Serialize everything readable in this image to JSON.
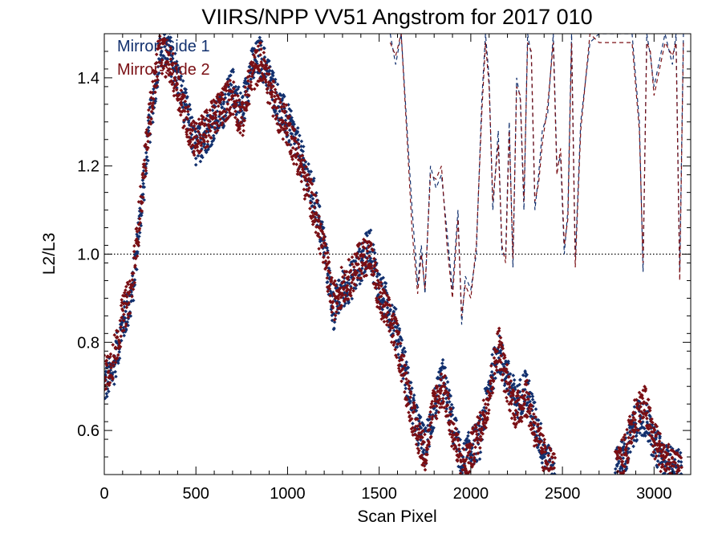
{
  "chart_data": {
    "type": "scatter",
    "title": "VIIRS/NPP VV51 Angstrom for 2017 010",
    "xlabel": "Scan Pixel",
    "ylabel": "L2/L3",
    "xlim": [
      0,
      3200
    ],
    "ylim": [
      0.5,
      1.5
    ],
    "xticks": [
      0,
      500,
      1000,
      1500,
      2000,
      2500,
      3000
    ],
    "xtick_labels": [
      "0",
      "500",
      "1000",
      "1500",
      "2000",
      "2500",
      "3000"
    ],
    "yticks": [
      0.6,
      0.8,
      1.0,
      1.2,
      1.4
    ],
    "ytick_labels": [
      "0.6",
      "0.8",
      "1.0",
      "1.2",
      "1.4"
    ],
    "reference_line": {
      "y": 1.0,
      "style": "dotted"
    },
    "legend_position": "top-left",
    "colors": {
      "mirror_side_1": "#12306e",
      "mirror_side_2": "#7a0f14"
    },
    "series": [
      {
        "name": "Mirror-Side 1",
        "color": "#12306e",
        "points_trace": [
          [
            0,
            0.7
          ],
          [
            50,
            0.74
          ],
          [
            100,
            0.84
          ],
          [
            150,
            0.9
          ],
          [
            200,
            1.1
          ],
          [
            250,
            1.3
          ],
          [
            300,
            1.45
          ],
          [
            350,
            1.47
          ],
          [
            400,
            1.4
          ],
          [
            450,
            1.32
          ],
          [
            500,
            1.24
          ],
          [
            550,
            1.27
          ],
          [
            600,
            1.3
          ],
          [
            650,
            1.33
          ],
          [
            700,
            1.38
          ],
          [
            750,
            1.32
          ],
          [
            800,
            1.42
          ],
          [
            850,
            1.45
          ],
          [
            900,
            1.4
          ],
          [
            950,
            1.34
          ],
          [
            1000,
            1.3
          ],
          [
            1050,
            1.25
          ],
          [
            1100,
            1.18
          ],
          [
            1150,
            1.12
          ],
          [
            1200,
            1.02
          ],
          [
            1250,
            0.87
          ],
          [
            1300,
            0.92
          ],
          [
            1350,
            0.94
          ],
          [
            1400,
            0.98
          ],
          [
            1450,
            1.02
          ],
          [
            1500,
            0.92
          ],
          [
            1550,
            0.88
          ],
          [
            1600,
            0.82
          ],
          [
            1650,
            0.72
          ],
          [
            1700,
            0.62
          ],
          [
            1750,
            0.56
          ],
          [
            1800,
            0.65
          ],
          [
            1850,
            0.72
          ],
          [
            1900,
            0.62
          ],
          [
            1950,
            0.52
          ],
          [
            2000,
            0.56
          ],
          [
            2050,
            0.58
          ],
          [
            2100,
            0.7
          ],
          [
            2150,
            0.78
          ],
          [
            2200,
            0.72
          ],
          [
            2250,
            0.66
          ],
          [
            2300,
            0.7
          ],
          [
            2350,
            0.62
          ],
          [
            2400,
            0.55
          ],
          [
            2450,
            0.5
          ],
          [
            2800,
            0.52
          ],
          [
            2850,
            0.55
          ],
          [
            2900,
            0.62
          ],
          [
            2950,
            0.63
          ],
          [
            3000,
            0.57
          ],
          [
            3050,
            0.53
          ],
          [
            3100,
            0.52
          ],
          [
            3150,
            0.51
          ]
        ],
        "dashed_trace": [
          [
            1560,
            1.5
          ],
          [
            1590,
            1.43
          ],
          [
            1620,
            1.5
          ],
          [
            1650,
            1.3
          ],
          [
            1680,
            1.1
          ],
          [
            1710,
            0.93
          ],
          [
            1730,
            1.02
          ],
          [
            1750,
            0.91
          ],
          [
            1780,
            1.2
          ],
          [
            1810,
            1.15
          ],
          [
            1840,
            1.18
          ],
          [
            1870,
            1.05
          ],
          [
            1900,
            0.92
          ],
          [
            1930,
            1.1
          ],
          [
            1950,
            0.84
          ],
          [
            1970,
            0.95
          ],
          [
            2000,
            0.92
          ],
          [
            2030,
            1.0
          ],
          [
            2060,
            1.35
          ],
          [
            2080,
            1.5
          ],
          [
            2100,
            1.4
          ],
          [
            2120,
            1.1
          ],
          [
            2150,
            1.28
          ],
          [
            2170,
            1.0
          ],
          [
            2190,
            1.0
          ],
          [
            2210,
            1.3
          ],
          [
            2230,
            0.97
          ],
          [
            2250,
            1.4
          ],
          [
            2270,
            1.35
          ],
          [
            2290,
            1.1
          ],
          [
            2310,
            1.5
          ],
          [
            2330,
            1.45
          ],
          [
            2350,
            1.1
          ],
          [
            2370,
            1.18
          ],
          [
            2390,
            1.28
          ],
          [
            2420,
            1.32
          ],
          [
            2450,
            1.5
          ],
          [
            2470,
            1.2
          ],
          [
            2490,
            1.22
          ],
          [
            2510,
            1.0
          ],
          [
            2530,
            1.1
          ],
          [
            2550,
            1.5
          ],
          [
            2570,
            0.99
          ],
          [
            2600,
            1.3
          ],
          [
            2650,
            1.48
          ],
          [
            2700,
            1.5
          ],
          [
            2880,
            1.5
          ],
          [
            2920,
            1.3
          ],
          [
            2940,
            0.96
          ],
          [
            2960,
            1.5
          ],
          [
            2980,
            1.45
          ],
          [
            3000,
            1.38
          ],
          [
            3060,
            1.5
          ],
          [
            3100,
            1.43
          ],
          [
            3120,
            1.5
          ],
          [
            3140,
            0.96
          ],
          [
            3160,
            1.5
          ]
        ]
      },
      {
        "name": "Mirror-Side 2",
        "color": "#7a0f14",
        "points_trace": [
          [
            0,
            0.73
          ],
          [
            50,
            0.76
          ],
          [
            100,
            0.86
          ],
          [
            150,
            0.92
          ],
          [
            200,
            1.12
          ],
          [
            250,
            1.32
          ],
          [
            300,
            1.46
          ],
          [
            350,
            1.44
          ],
          [
            400,
            1.38
          ],
          [
            450,
            1.3
          ],
          [
            500,
            1.26
          ],
          [
            550,
            1.28
          ],
          [
            600,
            1.31
          ],
          [
            650,
            1.34
          ],
          [
            700,
            1.36
          ],
          [
            750,
            1.3
          ],
          [
            800,
            1.4
          ],
          [
            850,
            1.44
          ],
          [
            900,
            1.38
          ],
          [
            950,
            1.32
          ],
          [
            1000,
            1.29
          ],
          [
            1050,
            1.23
          ],
          [
            1100,
            1.16
          ],
          [
            1150,
            1.1
          ],
          [
            1200,
            1.0
          ],
          [
            1250,
            0.89
          ],
          [
            1300,
            0.93
          ],
          [
            1350,
            0.95
          ],
          [
            1400,
            0.99
          ],
          [
            1450,
            1.0
          ],
          [
            1500,
            0.9
          ],
          [
            1550,
            0.86
          ],
          [
            1600,
            0.8
          ],
          [
            1650,
            0.7
          ],
          [
            1700,
            0.6
          ],
          [
            1750,
            0.55
          ],
          [
            1800,
            0.66
          ],
          [
            1850,
            0.7
          ],
          [
            1900,
            0.6
          ],
          [
            1950,
            0.51
          ],
          [
            2000,
            0.55
          ],
          [
            2050,
            0.6
          ],
          [
            2100,
            0.68
          ],
          [
            2150,
            0.8
          ],
          [
            2200,
            0.7
          ],
          [
            2250,
            0.64
          ],
          [
            2300,
            0.68
          ],
          [
            2350,
            0.6
          ],
          [
            2400,
            0.54
          ],
          [
            2450,
            0.51
          ],
          [
            2800,
            0.51
          ],
          [
            2850,
            0.56
          ],
          [
            2900,
            0.64
          ],
          [
            2950,
            0.66
          ],
          [
            3000,
            0.58
          ],
          [
            3050,
            0.54
          ],
          [
            3100,
            0.51
          ],
          [
            3150,
            0.5
          ]
        ],
        "dashed_trace": [
          [
            1560,
            1.48
          ],
          [
            1590,
            1.45
          ],
          [
            1620,
            1.5
          ],
          [
            1650,
            1.28
          ],
          [
            1680,
            1.05
          ],
          [
            1710,
            0.91
          ],
          [
            1730,
            1.0
          ],
          [
            1750,
            0.92
          ],
          [
            1780,
            1.18
          ],
          [
            1810,
            1.17
          ],
          [
            1840,
            1.2
          ],
          [
            1870,
            1.02
          ],
          [
            1900,
            0.9
          ],
          [
            1930,
            1.08
          ],
          [
            1950,
            0.86
          ],
          [
            1970,
            0.93
          ],
          [
            2000,
            0.9
          ],
          [
            2030,
            1.02
          ],
          [
            2060,
            1.32
          ],
          [
            2080,
            1.48
          ],
          [
            2100,
            1.38
          ],
          [
            2120,
            1.12
          ],
          [
            2150,
            1.25
          ],
          [
            2170,
            1.02
          ],
          [
            2190,
            0.98
          ],
          [
            2210,
            1.28
          ],
          [
            2230,
            0.99
          ],
          [
            2250,
            1.38
          ],
          [
            2270,
            1.36
          ],
          [
            2290,
            1.12
          ],
          [
            2310,
            1.48
          ],
          [
            2330,
            1.46
          ],
          [
            2350,
            1.12
          ],
          [
            2370,
            1.16
          ],
          [
            2390,
            1.25
          ],
          [
            2420,
            1.34
          ],
          [
            2450,
            1.48
          ],
          [
            2470,
            1.18
          ],
          [
            2490,
            1.24
          ],
          [
            2510,
            1.02
          ],
          [
            2530,
            1.08
          ],
          [
            2550,
            1.48
          ],
          [
            2570,
            0.97
          ],
          [
            2600,
            1.28
          ],
          [
            2650,
            1.5
          ],
          [
            2700,
            1.48
          ],
          [
            2880,
            1.48
          ],
          [
            2920,
            1.28
          ],
          [
            2940,
            0.98
          ],
          [
            2960,
            1.48
          ],
          [
            2980,
            1.46
          ],
          [
            3000,
            1.36
          ],
          [
            3060,
            1.48
          ],
          [
            3100,
            1.45
          ],
          [
            3120,
            1.48
          ],
          [
            3140,
            0.94
          ],
          [
            3160,
            1.48
          ]
        ]
      }
    ]
  }
}
